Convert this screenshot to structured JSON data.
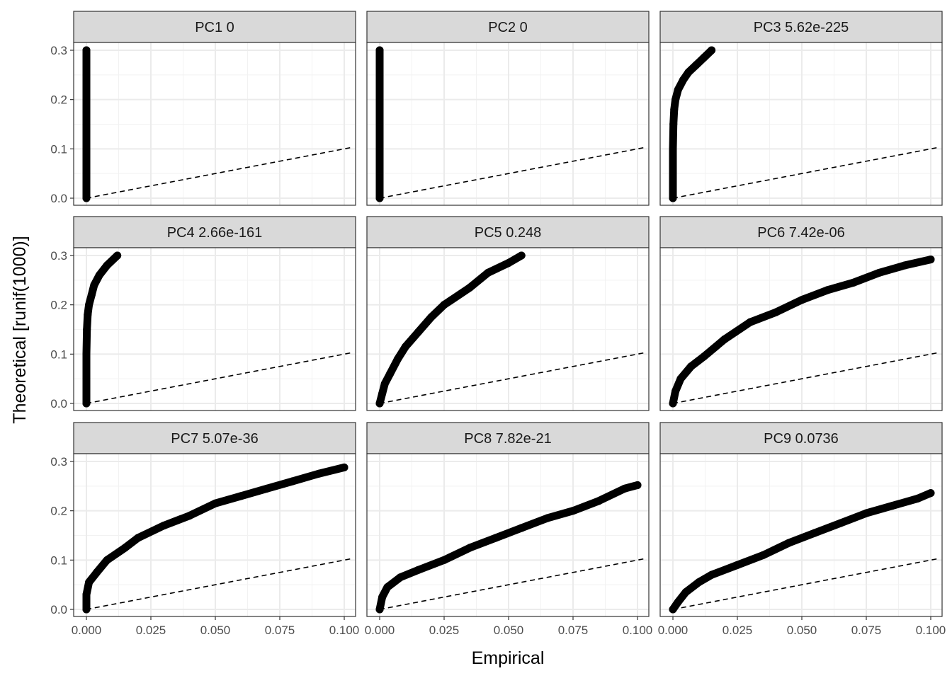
{
  "chart_data": {
    "type": "scatter",
    "layout": "facet_wrap 3x3",
    "xlabel": "Empirical",
    "ylabel": "Theoretical [runif(1000)]",
    "xlim": [
      0,
      0.1
    ],
    "ylim": [
      0,
      0.3
    ],
    "x_ticks": [
      "0.000",
      "0.025",
      "0.050",
      "0.075",
      "0.100"
    ],
    "y_ticks": [
      "0.0",
      "0.1",
      "0.2",
      "0.3"
    ],
    "x_tick_values": [
      0,
      0.025,
      0.05,
      0.075,
      0.1
    ],
    "y_tick_values": [
      0,
      0.1,
      0.2,
      0.3
    ],
    "reference_line": {
      "style": "dashed",
      "slope": 1,
      "intercept": 0,
      "color": "#000000"
    },
    "point_color": "#000000",
    "grid": true,
    "panels": [
      {
        "label": "PC1 0",
        "points": [
          [
            0,
            0
          ],
          [
            0,
            0.3
          ]
        ]
      },
      {
        "label": "PC2 0",
        "points": [
          [
            0,
            0
          ],
          [
            0,
            0.3
          ]
        ]
      },
      {
        "label": "PC3 5.62e-225",
        "points": [
          [
            0,
            0
          ],
          [
            0,
            0.05
          ],
          [
            0,
            0.1
          ],
          [
            0.0002,
            0.15
          ],
          [
            0.0005,
            0.18
          ],
          [
            0.001,
            0.2
          ],
          [
            0.002,
            0.22
          ],
          [
            0.004,
            0.24
          ],
          [
            0.006,
            0.255
          ],
          [
            0.009,
            0.27
          ],
          [
            0.012,
            0.285
          ],
          [
            0.015,
            0.3
          ]
        ]
      },
      {
        "label": "PC4 2.66e-161",
        "points": [
          [
            0,
            0
          ],
          [
            0,
            0.05
          ],
          [
            0,
            0.1
          ],
          [
            0.0002,
            0.15
          ],
          [
            0.0005,
            0.18
          ],
          [
            0.001,
            0.2
          ],
          [
            0.002,
            0.22
          ],
          [
            0.003,
            0.24
          ],
          [
            0.005,
            0.26
          ],
          [
            0.008,
            0.28
          ],
          [
            0.012,
            0.3
          ]
        ]
      },
      {
        "label": "PC5 0.248",
        "points": [
          [
            0,
            0
          ],
          [
            0.001,
            0.02
          ],
          [
            0.002,
            0.04
          ],
          [
            0.004,
            0.06
          ],
          [
            0.007,
            0.09
          ],
          [
            0.01,
            0.115
          ],
          [
            0.015,
            0.145
          ],
          [
            0.02,
            0.175
          ],
          [
            0.025,
            0.2
          ],
          [
            0.035,
            0.235
          ],
          [
            0.042,
            0.265
          ],
          [
            0.05,
            0.285
          ],
          [
            0.055,
            0.3
          ]
        ]
      },
      {
        "label": "PC6 7.42e-06",
        "points": [
          [
            0,
            0
          ],
          [
            0.001,
            0.025
          ],
          [
            0.003,
            0.05
          ],
          [
            0.007,
            0.075
          ],
          [
            0.012,
            0.095
          ],
          [
            0.02,
            0.13
          ],
          [
            0.03,
            0.165
          ],
          [
            0.04,
            0.185
          ],
          [
            0.05,
            0.21
          ],
          [
            0.06,
            0.23
          ],
          [
            0.07,
            0.245
          ],
          [
            0.08,
            0.265
          ],
          [
            0.09,
            0.28
          ],
          [
            0.1,
            0.292
          ]
        ]
      },
      {
        "label": "PC7 5.07e-36",
        "points": [
          [
            0,
            0
          ],
          [
            0,
            0.03
          ],
          [
            0.001,
            0.055
          ],
          [
            0.004,
            0.075
          ],
          [
            0.008,
            0.1
          ],
          [
            0.015,
            0.125
          ],
          [
            0.02,
            0.145
          ],
          [
            0.03,
            0.17
          ],
          [
            0.04,
            0.19
          ],
          [
            0.05,
            0.215
          ],
          [
            0.06,
            0.23
          ],
          [
            0.07,
            0.245
          ],
          [
            0.08,
            0.26
          ],
          [
            0.09,
            0.275
          ],
          [
            0.1,
            0.288
          ]
        ]
      },
      {
        "label": "PC8 7.82e-21",
        "points": [
          [
            0,
            0
          ],
          [
            0.001,
            0.025
          ],
          [
            0.003,
            0.045
          ],
          [
            0.008,
            0.065
          ],
          [
            0.015,
            0.08
          ],
          [
            0.025,
            0.1
          ],
          [
            0.035,
            0.125
          ],
          [
            0.045,
            0.145
          ],
          [
            0.055,
            0.165
          ],
          [
            0.065,
            0.185
          ],
          [
            0.075,
            0.2
          ],
          [
            0.085,
            0.22
          ],
          [
            0.095,
            0.245
          ],
          [
            0.1,
            0.252
          ]
        ]
      },
      {
        "label": "PC9 0.0736",
        "points": [
          [
            0,
            0
          ],
          [
            0.002,
            0.015
          ],
          [
            0.005,
            0.035
          ],
          [
            0.01,
            0.055
          ],
          [
            0.015,
            0.07
          ],
          [
            0.025,
            0.09
          ],
          [
            0.035,
            0.11
          ],
          [
            0.045,
            0.135
          ],
          [
            0.055,
            0.155
          ],
          [
            0.065,
            0.175
          ],
          [
            0.075,
            0.195
          ],
          [
            0.085,
            0.21
          ],
          [
            0.095,
            0.225
          ],
          [
            0.1,
            0.236
          ]
        ]
      }
    ]
  }
}
